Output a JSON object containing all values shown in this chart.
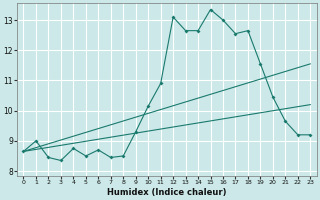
{
  "title": "",
  "xlabel": "Humidex (Indice chaleur)",
  "xlim": [
    -0.5,
    23.5
  ],
  "ylim": [
    7.85,
    13.55
  ],
  "yticks": [
    8,
    9,
    10,
    11,
    12,
    13
  ],
  "xticks": [
    0,
    1,
    2,
    3,
    4,
    5,
    6,
    7,
    8,
    9,
    10,
    11,
    12,
    13,
    14,
    15,
    16,
    17,
    18,
    19,
    20,
    21,
    22,
    23
  ],
  "background_color": "#cce8e8",
  "grid_color": "#ffffff",
  "line_color": "#1a7a6e",
  "line1_x": [
    0,
    1,
    2,
    3,
    4,
    5,
    6,
    7,
    8,
    9,
    10,
    11,
    12,
    13,
    14,
    15,
    16,
    17,
    18,
    19,
    20,
    21,
    22,
    23
  ],
  "line1_y": [
    8.65,
    9.0,
    8.45,
    8.35,
    8.75,
    8.5,
    8.7,
    8.45,
    8.5,
    9.3,
    10.15,
    10.9,
    13.1,
    12.65,
    12.65,
    13.35,
    13.0,
    12.55,
    12.65,
    11.55,
    10.45,
    9.65,
    9.2,
    9.2
  ],
  "line2_x": [
    0,
    23
  ],
  "line2_y": [
    8.65,
    11.55
  ],
  "line3_x": [
    0,
    23
  ],
  "line3_y": [
    8.65,
    10.2
  ]
}
